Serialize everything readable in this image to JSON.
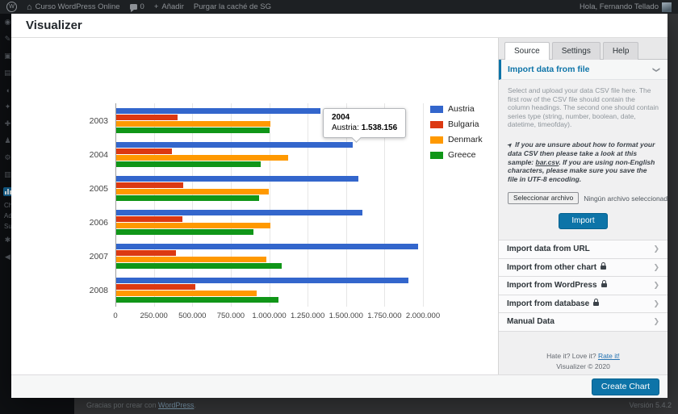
{
  "icons": {
    "wp_logo": "W",
    "home": "⌂",
    "add_new": "+",
    "chevron": "❯",
    "pin": "➤",
    "collapse": "◀"
  },
  "admin_bar": {
    "site_name": "Curso WordPress Online",
    "comments_count": "0",
    "add_label": "Añadir",
    "purge_label": "Purgar la caché de SG",
    "greeting": "Hola, Fernando Tellado"
  },
  "sidebar": {
    "items": [
      {
        "name": "dashboard",
        "glyph": "◉"
      },
      {
        "name": "posts",
        "glyph": "✎"
      },
      {
        "name": "media",
        "glyph": "▣"
      },
      {
        "name": "pages",
        "glyph": "▤"
      },
      {
        "name": "comments",
        "glyph": "◖"
      },
      {
        "name": "appearance",
        "glyph": "✦"
      },
      {
        "name": "plugins",
        "glyph": "✚"
      },
      {
        "name": "users",
        "glyph": "♟"
      },
      {
        "name": "tools",
        "glyph": "⚙"
      },
      {
        "name": "settings",
        "glyph": "▥"
      },
      {
        "name": "visualizer",
        "glyph": "",
        "active": true
      }
    ],
    "submenu_fragments": [
      "Ch",
      "Ad",
      "Su"
    ],
    "bottom_items": [
      {
        "name": "analytics",
        "glyph": "✱"
      },
      {
        "name": "collapse-menu",
        "glyph": "◀"
      }
    ]
  },
  "modal": {
    "title": "Visualizer",
    "create_button": "Create Chart"
  },
  "chart_data": {
    "type": "bar",
    "orientation": "horizontal",
    "title": "",
    "categories": [
      "2003",
      "2004",
      "2005",
      "2006",
      "2007",
      "2008"
    ],
    "series": [
      {
        "name": "Austria",
        "color": "#3366cc",
        "values": [
          1330000,
          1538156,
          1577000,
          1600000,
          1965000,
          1900000
        ]
      },
      {
        "name": "Bulgaria",
        "color": "#dc3912",
        "values": [
          400000,
          363000,
          437000,
          432000,
          389000,
          516000
        ]
      },
      {
        "name": "Denmark",
        "color": "#ff9900",
        "values": [
          1000000,
          1117000,
          991000,
          1000000,
          974000,
          913000
        ]
      },
      {
        "name": "Greece",
        "color": "#109618",
        "values": [
          995000,
          939000,
          930000,
          892000,
          1075000,
          1053000
        ]
      }
    ],
    "xlim": [
      0,
      2000000
    ],
    "x_tick_labels": [
      "0",
      "250.000",
      "500.000",
      "750.000",
      "1.000.000",
      "1.250.000",
      "1.500.000",
      "1.750.000",
      "2.000.000"
    ],
    "grid": true,
    "legend_position": "right",
    "tooltip": {
      "category": "2004",
      "series": "Austria",
      "separator": ": ",
      "value_label": "1.538.156"
    }
  },
  "side_panel": {
    "tabs": [
      {
        "label": "Source",
        "active": true
      },
      {
        "label": "Settings",
        "active": false
      },
      {
        "label": "Help",
        "active": false
      }
    ],
    "file_section": {
      "title": "Import data from file",
      "description": "Select and upload your data CSV file here. The first row of the CSV file should contain the column headings. The second one should contain series type (string, number, boolean, date, datetime, timeofday).",
      "note_prefix": "If you are unsure about how to format your data CSV then please take a look at this sample: ",
      "note_link": "bar.csv",
      "note_suffix": ". If you are using non-English characters, please make sure you save the file in UTF-8 encoding.",
      "file_button": "Seleccionar archivo",
      "file_status": "Ningún archivo seleccionado",
      "import_button": "Import"
    },
    "sections": [
      {
        "label": "Import data from URL",
        "locked": false
      },
      {
        "label": "Import from other chart",
        "locked": true
      },
      {
        "label": "Import from WordPress",
        "locked": true
      },
      {
        "label": "Import from database",
        "locked": true
      },
      {
        "label": "Manual Data",
        "locked": false
      }
    ],
    "footer": {
      "rate_text": "Hate it? Love it?",
      "rate_link": "Rate it!",
      "copyright": "Visualizer © 2020"
    }
  },
  "page_footer": {
    "thanks_prefix": "Gracias por crear con ",
    "thanks_link": "WordPress",
    "thanks_suffix": ".",
    "version": "Versión 5.4.2"
  }
}
